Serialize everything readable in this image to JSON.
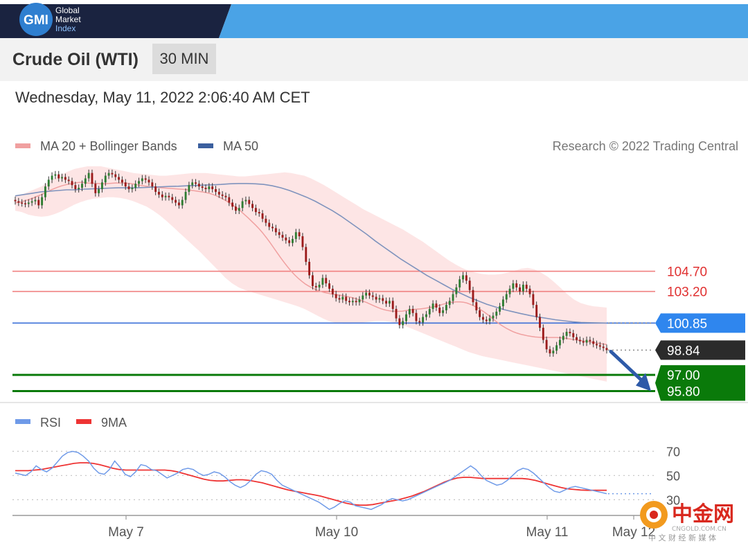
{
  "brand": {
    "logo_initials": "GMI",
    "logo_lines": [
      "Global",
      "Market",
      "Index"
    ]
  },
  "header": {
    "instrument": "Crude Oil (WTI)",
    "timeframe": "30 MIN",
    "datetime": "Wednesday, May 11, 2022 2:06:40 AM CET"
  },
  "watermark": {
    "name": "中金网",
    "site": "CNGOLD.COM.CN",
    "tagline": "中 文 财 经 新 媒 体"
  },
  "colors": {
    "banner_dark": "#1a2340",
    "banner_blue": "#4aa3e6",
    "ma20": "#f0a0a0",
    "bollinger": "#fde0e0",
    "ma50": "#7f93bd",
    "bull": "#2e7d32",
    "bear": "#9b1b1b",
    "resistance": "#f08080",
    "pivot": "#3b6fd8",
    "support": "#0a7a0a",
    "rsi": "#6f9ae8",
    "rsi_ma": "#ee3333"
  },
  "chart_data": [
    {
      "type": "candlestick",
      "title": "",
      "legend": [
        {
          "label": "MA 20 + Bollinger Bands",
          "color": "#f0a0a0"
        },
        {
          "label": "MA 50",
          "color": "#3b5f9e"
        }
      ],
      "credit": "Research © 2022 Trading Central",
      "x_ticks": [
        "May 7",
        "May 10",
        "May 11",
        "May 12"
      ],
      "ylim": [
        95.0,
        112.5
      ],
      "price_levels": [
        {
          "label": "104.70",
          "value": 104.7,
          "kind": "resistance"
        },
        {
          "label": "103.20",
          "value": 103.2,
          "kind": "resistance"
        },
        {
          "label": "100.85",
          "value": 100.85,
          "kind": "pivot"
        },
        {
          "label": "98.84",
          "value": 98.84,
          "kind": "current"
        },
        {
          "label": "97.00",
          "value": 97.0,
          "kind": "support"
        },
        {
          "label": "95.80",
          "value": 95.8,
          "kind": "support"
        }
      ],
      "close": [
        109.9,
        109.8,
        109.75,
        109.7,
        109.8,
        109.9,
        110.0,
        109.6,
        110.2,
        111.0,
        111.5,
        111.8,
        111.9,
        111.6,
        111.7,
        111.5,
        111.4,
        111.1,
        110.8,
        110.9,
        111.2,
        111.6,
        112.0,
        111.2,
        110.5,
        110.8,
        111.3,
        111.8,
        112.0,
        111.9,
        111.7,
        111.5,
        111.3,
        111.0,
        110.8,
        110.9,
        111.2,
        111.4,
        111.6,
        111.5,
        111.3,
        111.0,
        110.6,
        110.4,
        110.2,
        110.3,
        110.2,
        110.0,
        109.8,
        109.6,
        110.0,
        110.6,
        111.1,
        111.3,
        111.2,
        111.0,
        110.9,
        110.8,
        111.0,
        110.8,
        110.6,
        110.4,
        110.3,
        110.2,
        109.8,
        109.5,
        109.2,
        109.4,
        109.9,
        110.0,
        109.7,
        109.4,
        109.1,
        109.0,
        108.6,
        108.3,
        108.0,
        107.9,
        107.6,
        107.4,
        107.2,
        107.0,
        106.8,
        107.1,
        107.6,
        107.3,
        106.5,
        105.4,
        104.4,
        103.6,
        103.5,
        103.7,
        104.2,
        103.8,
        103.4,
        103.0,
        102.7,
        102.6,
        102.8,
        102.5,
        102.4,
        102.5,
        102.4,
        102.6,
        102.9,
        103.1,
        102.9,
        102.8,
        102.6,
        102.7,
        102.5,
        102.3,
        102.5,
        101.9,
        101.2,
        100.7,
        101.0,
        101.5,
        101.9,
        101.6,
        101.0,
        100.9,
        101.3,
        101.5,
        101.9,
        102.3,
        102.0,
        101.6,
        101.8,
        102.2,
        102.5,
        103.0,
        103.5,
        104.1,
        104.4,
        104.0,
        103.3,
        102.4,
        101.8,
        101.3,
        101.1,
        101.0,
        101.2,
        101.4,
        101.7,
        102.1,
        102.6,
        103.0,
        103.4,
        103.8,
        103.5,
        103.2,
        103.7,
        103.4,
        103.0,
        102.2,
        101.3,
        100.5,
        99.6,
        98.9,
        98.6,
        98.8,
        99.2,
        99.6,
        99.9,
        100.2,
        100.1,
        99.8,
        99.6,
        99.5,
        99.4,
        99.6,
        99.5,
        99.3,
        99.2,
        99.1,
        99.0,
        98.84
      ],
      "ma20": [
        109.8,
        109.82,
        109.88,
        109.96,
        110.05,
        110.14,
        110.26,
        110.36,
        110.48,
        110.62,
        110.75,
        110.86,
        110.96,
        111.05,
        111.12,
        111.18,
        111.22,
        111.28,
        111.3,
        111.3,
        111.26,
        111.24,
        111.24,
        111.22,
        111.2,
        111.2,
        111.22,
        111.24,
        111.26,
        111.26,
        111.25,
        111.24,
        111.22,
        111.18,
        111.12,
        111.08,
        111.04,
        111.0,
        110.96,
        110.94,
        110.92,
        110.9,
        110.88,
        110.86,
        110.84,
        110.82,
        110.8,
        110.78,
        110.76,
        110.72,
        110.68,
        110.64,
        110.6,
        110.56,
        110.5,
        110.42,
        110.32,
        110.2,
        110.06,
        109.9,
        109.74,
        109.56,
        109.36,
        109.14,
        108.9,
        108.66,
        108.4,
        108.14,
        107.86,
        107.56,
        107.22,
        106.86,
        106.48,
        106.1,
        105.72,
        105.36,
        105.02,
        104.7,
        104.42,
        104.16,
        103.94,
        103.74,
        103.58,
        103.44,
        103.32,
        103.22,
        103.14,
        103.08,
        103.02,
        102.98,
        102.94,
        102.9,
        102.86,
        102.8,
        102.74,
        102.66,
        102.58,
        102.48,
        102.38,
        102.26,
        102.14,
        102.02,
        101.92,
        101.84,
        101.78,
        101.74,
        101.72,
        101.72,
        101.74,
        101.78,
        101.82,
        101.86,
        101.88,
        101.9,
        101.94,
        101.98,
        102.02,
        102.08,
        102.14,
        102.22,
        102.3,
        102.36,
        102.4,
        102.42,
        102.42,
        102.4,
        102.34,
        102.24,
        102.12,
        101.98,
        101.82,
        101.64,
        101.44,
        101.22,
        101.0,
        100.8,
        100.62,
        100.46,
        100.32,
        100.2,
        100.1,
        100.02,
        99.96,
        99.9,
        99.86,
        99.82,
        99.8,
        99.78,
        99.78,
        99.78,
        99.78,
        99.78,
        99.76,
        99.74,
        99.7,
        99.66,
        99.62,
        99.58,
        99.54,
        99.5,
        99.46,
        99.42,
        99.38,
        99.34,
        99.3,
        99.26
      ],
      "bb_upper": [
        110.3,
        110.4,
        110.6,
        110.8,
        111.0,
        111.3,
        111.6,
        111.9,
        112.1,
        112.3,
        112.4,
        112.5,
        112.5,
        112.5,
        112.4,
        112.3,
        112.2,
        112.1,
        112.0,
        111.95,
        111.9,
        111.85,
        111.8,
        111.8,
        111.85,
        111.9,
        111.95,
        112.0,
        112.0,
        112.0,
        111.95,
        111.9,
        111.85,
        111.8,
        111.75,
        111.75,
        111.8,
        111.85,
        111.9,
        111.95,
        112.0,
        112.05,
        112.0,
        111.9,
        111.8,
        111.6,
        111.35,
        111.1,
        110.8,
        110.5,
        110.2,
        109.9,
        109.6,
        109.3,
        109.05,
        108.8,
        108.55,
        108.3,
        108.05,
        107.8,
        107.5,
        107.2,
        106.9,
        106.55,
        106.2,
        105.85,
        105.5,
        105.2,
        104.95,
        104.75,
        104.6,
        104.5,
        104.45,
        104.45,
        104.5,
        104.6,
        104.75,
        104.9,
        104.95,
        104.85,
        104.6,
        104.3,
        103.9,
        103.45,
        103.0,
        102.6,
        102.35,
        102.2,
        102.1,
        102.05,
        102.0
      ],
      "bb_lower": [
        109.2,
        109.1,
        108.9,
        108.8,
        108.75,
        108.8,
        108.95,
        109.15,
        109.4,
        109.65,
        109.85,
        110.0,
        110.1,
        110.15,
        110.2,
        110.2,
        110.15,
        110.05,
        109.9,
        109.7,
        109.5,
        109.2,
        108.85,
        108.45,
        108.0,
        107.55,
        107.1,
        106.65,
        106.2,
        105.7,
        105.2,
        104.7,
        104.2,
        103.8,
        103.5,
        103.3,
        103.15,
        103.0,
        102.85,
        102.7,
        102.55,
        102.4,
        102.25,
        102.1,
        101.9,
        101.65,
        101.4,
        101.15,
        100.95,
        100.85,
        100.8,
        100.8,
        100.85,
        100.9,
        100.95,
        101.0,
        101.0,
        100.95,
        100.85,
        100.7,
        100.5,
        100.3,
        100.1,
        99.9,
        99.7,
        99.5,
        99.3,
        99.1,
        98.9,
        98.7,
        98.55,
        98.4,
        98.3,
        98.2,
        98.1,
        98.0,
        97.9,
        97.8,
        97.7,
        97.6,
        97.5,
        97.4,
        97.3,
        97.2,
        97.1,
        97.0,
        96.9,
        96.8,
        96.7,
        96.6,
        96.5
      ],
      "ma50": [
        110.3,
        110.4,
        110.5,
        110.6,
        110.65,
        110.7,
        110.75,
        110.75,
        110.8,
        110.82,
        110.85,
        110.88,
        110.9,
        110.9,
        110.9,
        110.92,
        110.95,
        110.97,
        111.0,
        111.02,
        111.05,
        111.07,
        111.1,
        111.12,
        111.15,
        111.2,
        111.22,
        111.22,
        111.2,
        111.15,
        111.05,
        110.9,
        110.7,
        110.45,
        110.2,
        109.9,
        109.55,
        109.2,
        108.8,
        108.35,
        107.9,
        107.45,
        106.95,
        106.5,
        106.05,
        105.6,
        105.2,
        104.8,
        104.4,
        104.05,
        103.7,
        103.35,
        103.05,
        102.75,
        102.5,
        102.25,
        102.05,
        101.85,
        101.7,
        101.55,
        101.42,
        101.3,
        101.2,
        101.1,
        101.02,
        100.95,
        100.9,
        100.88,
        100.86,
        100.85
      ]
    },
    {
      "type": "line",
      "title": "",
      "legend": [
        {
          "label": "RSI",
          "color": "#6f9ae8"
        },
        {
          "label": "9MA",
          "color": "#ee3333"
        }
      ],
      "ylim": [
        17,
        80
      ],
      "y_ticks": [
        70,
        50,
        30
      ],
      "x_ticks": [
        "May 7",
        "May 10",
        "May 11",
        "May 12"
      ],
      "series": [
        {
          "name": "RSI",
          "values": [
            52,
            51,
            50,
            53,
            58,
            55,
            53,
            56,
            61,
            66,
            69,
            70,
            69,
            66,
            62,
            56,
            52,
            51,
            55,
            62,
            57,
            51,
            49,
            53,
            59,
            58,
            55,
            54,
            51,
            48,
            50,
            52,
            55,
            56,
            55,
            52,
            50,
            51,
            53,
            52,
            49,
            45,
            42,
            40,
            42,
            46,
            51,
            54,
            53,
            51,
            46,
            42,
            40,
            38,
            36,
            34,
            32,
            30,
            28,
            25,
            22,
            24,
            27,
            29,
            28,
            25,
            24,
            23,
            22,
            24,
            26,
            29,
            31,
            30,
            29,
            30,
            32,
            34,
            36,
            38,
            40,
            42,
            44,
            46,
            49,
            52,
            55,
            58,
            55,
            50,
            46,
            44,
            42,
            43,
            46,
            50,
            54,
            56,
            55,
            52,
            48,
            44,
            40,
            37,
            36,
            38,
            40,
            41,
            40,
            39,
            38,
            37,
            36,
            35
          ]
        },
        {
          "name": "9MA",
          "values": [
            54,
            54,
            54,
            54.5,
            55,
            56,
            57,
            58,
            59,
            60,
            60.5,
            60.5,
            60,
            59,
            57.5,
            56,
            55,
            54.5,
            54.5,
            54.5,
            54.5,
            54.5,
            54.5,
            54.5,
            54,
            53,
            51.5,
            50,
            48.5,
            47,
            46,
            45.5,
            45.5,
            46,
            46.5,
            46.5,
            46,
            45,
            44,
            42.5,
            41,
            39.5,
            38,
            37,
            36,
            35,
            34,
            33,
            31.5,
            30,
            28.5,
            27,
            26,
            25.5,
            25.5,
            26,
            27,
            28,
            29,
            30,
            31.5,
            33,
            35,
            37,
            39.5,
            42,
            44.5,
            46.5,
            48,
            48.5,
            48.5,
            48,
            47.5,
            47.5,
            47.5,
            47.5,
            47.5,
            47.5,
            47.5,
            47,
            46,
            44.5,
            43,
            41.5,
            40,
            39,
            38.5,
            38,
            37.8,
            37.8,
            37.8,
            37.8
          ]
        }
      ]
    }
  ]
}
